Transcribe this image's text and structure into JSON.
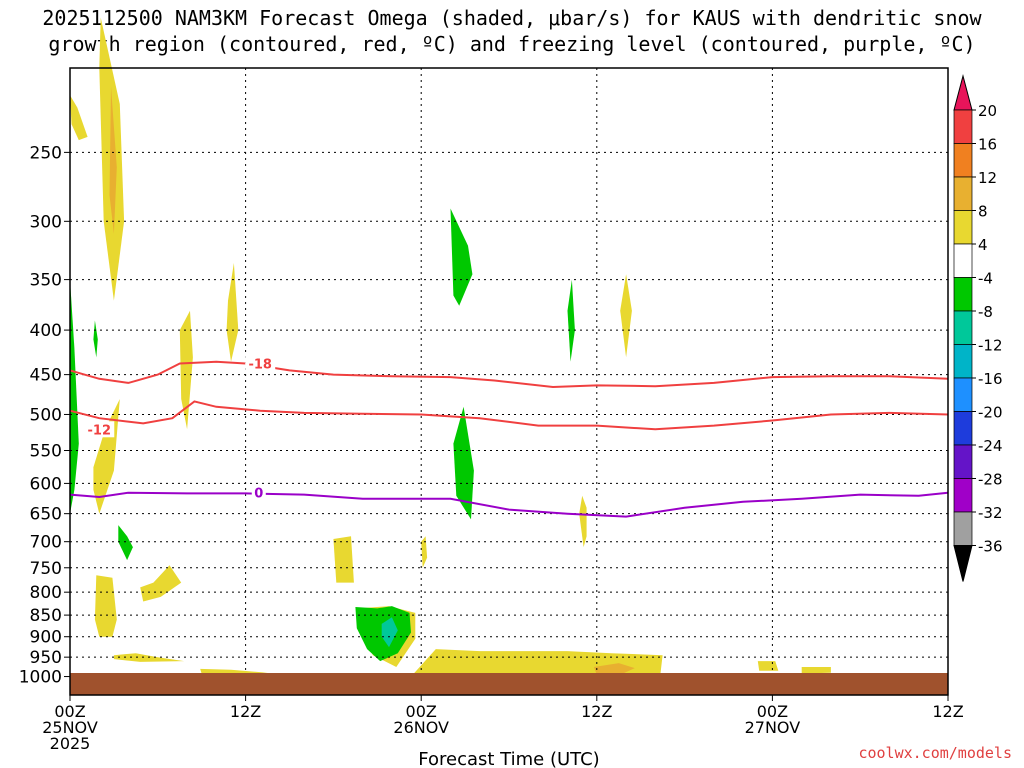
{
  "title": {
    "line1": "2025112500 NAM3KM Forecast Omega (shaded, μbar/s) for KAUS with dendritic snow",
    "line2": "growth region (contoured, red, ºC) and freezing level (contoured, purple, ºC)"
  },
  "footer": "coolwx.com/models",
  "chart_data": {
    "type": "time-height contour",
    "xlabel": "Forecast Time (UTC)",
    "x_range_hours": [
      0,
      60
    ],
    "y_range_hPa": [
      1050,
      200
    ],
    "x_ticks": [
      {
        "hour": 0,
        "lines": [
          "00Z",
          "25NOV",
          "2025"
        ]
      },
      {
        "hour": 12,
        "lines": [
          "12Z"
        ]
      },
      {
        "hour": 24,
        "lines": [
          "00Z",
          "26NOV"
        ]
      },
      {
        "hour": 36,
        "lines": [
          "12Z"
        ]
      },
      {
        "hour": 48,
        "lines": [
          "00Z",
          "27NOV"
        ]
      },
      {
        "hour": 60,
        "lines": [
          "12Z"
        ]
      }
    ],
    "y_ticks": [
      250,
      300,
      350,
      400,
      450,
      500,
      550,
      600,
      650,
      700,
      750,
      800,
      850,
      900,
      950,
      1000
    ],
    "colorbar": {
      "labels": [
        "20",
        "16",
        "12",
        "8",
        "4",
        "-4",
        "-8",
        "-12",
        "-16",
        "-20",
        "-24",
        "-28",
        "-32",
        "-36"
      ],
      "colors": [
        "#e8145a",
        "#f04040",
        "#f08020",
        "#e8b030",
        "#e8d830",
        "#ffffff",
        "#00c800",
        "#00c89a",
        "#00b4c8",
        "#1e90ff",
        "#1e3cdc",
        "#6414c8",
        "#a000c8",
        "#a0a0a0",
        "#000000"
      ]
    },
    "shading": [
      {
        "fill": "#e8d830",
        "pts": [
          [
            0.0,
            215
          ],
          [
            0.5,
            222
          ],
          [
            1.2,
            240
          ],
          [
            0.6,
            242
          ],
          [
            0.1,
            232
          ]
        ]
      },
      {
        "fill": "#e8d830",
        "pts": [
          [
            2.1,
            175
          ],
          [
            3.4,
            220
          ],
          [
            3.7,
            300
          ],
          [
            3.0,
            370
          ],
          [
            2.3,
            300
          ],
          [
            2.0,
            200
          ]
        ]
      },
      {
        "fill": "#e8b030",
        "pts": [
          [
            2.8,
            210
          ],
          [
            3.2,
            260
          ],
          [
            3.0,
            310
          ],
          [
            2.7,
            280
          ]
        ]
      },
      {
        "fill": "#00c800",
        "pts": [
          [
            0.0,
            350
          ],
          [
            0.3,
            420
          ],
          [
            0.6,
            540
          ],
          [
            0.3,
            610
          ],
          [
            0.0,
            650
          ]
        ]
      },
      {
        "fill": "#00c800",
        "pts": [
          [
            1.7,
            390
          ],
          [
            1.9,
            410
          ],
          [
            1.8,
            430
          ],
          [
            1.6,
            410
          ]
        ]
      },
      {
        "fill": "#e8d830",
        "pts": [
          [
            1.6,
            575
          ],
          [
            2.4,
            520
          ],
          [
            3.4,
            480
          ],
          [
            3.0,
            580
          ],
          [
            2.0,
            650
          ],
          [
            1.6,
            610
          ]
        ]
      },
      {
        "fill": "#e8d830",
        "pts": [
          [
            7.5,
            400
          ],
          [
            8.2,
            380
          ],
          [
            8.4,
            430
          ],
          [
            8.0,
            520
          ],
          [
            7.6,
            480
          ]
        ]
      },
      {
        "fill": "#e8d830",
        "pts": [
          [
            10.8,
            370
          ],
          [
            11.2,
            335
          ],
          [
            11.5,
            400
          ],
          [
            11.0,
            435
          ],
          [
            10.7,
            400
          ]
        ]
      },
      {
        "fill": "#00c800",
        "pts": [
          [
            3.3,
            670
          ],
          [
            3.9,
            690
          ],
          [
            4.3,
            710
          ],
          [
            3.9,
            735
          ],
          [
            3.3,
            700
          ]
        ]
      },
      {
        "fill": "#e8d830",
        "pts": [
          [
            4.8,
            790
          ],
          [
            5.7,
            780
          ],
          [
            6.8,
            745
          ],
          [
            7.6,
            780
          ],
          [
            6.2,
            810
          ],
          [
            5.0,
            820
          ]
        ]
      },
      {
        "fill": "#e8d830",
        "pts": [
          [
            1.8,
            765
          ],
          [
            2.9,
            770
          ],
          [
            3.2,
            860
          ],
          [
            2.9,
            900
          ],
          [
            2.0,
            900
          ],
          [
            1.7,
            860
          ]
        ]
      },
      {
        "fill": "#e8d830",
        "pts": [
          [
            3.0,
            945
          ],
          [
            4.5,
            940
          ],
          [
            6.0,
            950
          ],
          [
            7.8,
            960
          ],
          [
            4.8,
            962
          ],
          [
            3.0,
            955
          ]
        ]
      },
      {
        "fill": "#e8d830",
        "pts": [
          [
            8.9,
            980
          ],
          [
            11.0,
            982
          ],
          [
            13.5,
            990
          ],
          [
            11.0,
            994
          ],
          [
            9.0,
            993
          ]
        ]
      },
      {
        "fill": "#e8d830",
        "pts": [
          [
            19.7,
            835
          ],
          [
            21.8,
            830
          ],
          [
            23.6,
            845
          ],
          [
            23.6,
            905
          ],
          [
            22.3,
            975
          ],
          [
            20.7,
            945
          ],
          [
            19.7,
            875
          ]
        ]
      },
      {
        "fill": "#00c800",
        "pts": [
          [
            19.5,
            832
          ],
          [
            21.0,
            835
          ],
          [
            22.0,
            830
          ],
          [
            23.2,
            845
          ],
          [
            23.3,
            890
          ],
          [
            22.4,
            940
          ],
          [
            21.2,
            960
          ],
          [
            20.3,
            930
          ],
          [
            19.6,
            880
          ]
        ]
      },
      {
        "fill": "#00c89a",
        "pts": [
          [
            21.3,
            870
          ],
          [
            22.0,
            855
          ],
          [
            22.4,
            885
          ],
          [
            21.8,
            925
          ],
          [
            21.3,
            900
          ]
        ]
      },
      {
        "fill": "#e8d830",
        "pts": [
          [
            24.0,
            700
          ],
          [
            24.3,
            690
          ],
          [
            24.4,
            730
          ],
          [
            24.1,
            750
          ]
        ]
      },
      {
        "fill": "#e8d830",
        "pts": [
          [
            18.0,
            695
          ],
          [
            19.2,
            690
          ],
          [
            19.4,
            780
          ],
          [
            18.2,
            780
          ]
        ]
      },
      {
        "fill": "#e8d830",
        "pts": [
          [
            23.3,
            1000
          ],
          [
            25.0,
            930
          ],
          [
            28.0,
            935
          ],
          [
            31.0,
            935
          ],
          [
            34.0,
            935
          ],
          [
            37.0,
            940
          ],
          [
            40.5,
            945
          ],
          [
            40.3,
            1010
          ],
          [
            34.0,
            1010
          ],
          [
            28.0,
            1010
          ]
        ]
      },
      {
        "fill": "#e8b030",
        "pts": [
          [
            35.8,
            975
          ],
          [
            37.5,
            965
          ],
          [
            38.6,
            978
          ],
          [
            37.6,
            995
          ],
          [
            36.0,
            995
          ]
        ]
      },
      {
        "fill": "#00c800",
        "pts": [
          [
            26.0,
            290
          ],
          [
            27.2,
            320
          ],
          [
            27.5,
            345
          ],
          [
            26.6,
            375
          ],
          [
            26.2,
            365
          ]
        ]
      },
      {
        "fill": "#00c800",
        "pts": [
          [
            26.2,
            540
          ],
          [
            26.9,
            490
          ],
          [
            27.6,
            580
          ],
          [
            27.4,
            660
          ],
          [
            26.4,
            620
          ]
        ]
      },
      {
        "fill": "#00c800",
        "pts": [
          [
            34.0,
            380
          ],
          [
            34.3,
            350
          ],
          [
            34.5,
            400
          ],
          [
            34.2,
            435
          ]
        ]
      },
      {
        "fill": "#e8d830",
        "pts": [
          [
            37.6,
            380
          ],
          [
            38.0,
            345
          ],
          [
            38.4,
            380
          ],
          [
            38.0,
            430
          ]
        ]
      },
      {
        "fill": "#e8d830",
        "pts": [
          [
            35.0,
            620
          ],
          [
            35.3,
            640
          ],
          [
            35.3,
            690
          ],
          [
            35.1,
            710
          ],
          [
            34.8,
            650
          ]
        ]
      },
      {
        "fill": "#e8d830",
        "pts": [
          [
            47.0,
            960
          ],
          [
            48.2,
            960
          ],
          [
            48.4,
            985
          ],
          [
            47.1,
            985
          ]
        ]
      },
      {
        "fill": "#e8d830",
        "pts": [
          [
            50.0,
            975
          ],
          [
            52.0,
            975
          ],
          [
            52.0,
            990
          ],
          [
            50.0,
            992
          ]
        ]
      }
    ],
    "contours": [
      {
        "label": "-18",
        "color": "#f04040",
        "label_hour": 13.0,
        "label_p": 437,
        "pts": [
          [
            0,
            445
          ],
          [
            2,
            455
          ],
          [
            4,
            460
          ],
          [
            6,
            450
          ],
          [
            7.5,
            437
          ],
          [
            10,
            435
          ],
          [
            12,
            437
          ],
          [
            15,
            445
          ],
          [
            18,
            450
          ],
          [
            22,
            452
          ],
          [
            26,
            453
          ],
          [
            29,
            457
          ],
          [
            33,
            465
          ],
          [
            36,
            463
          ],
          [
            40,
            464
          ],
          [
            44,
            460
          ],
          [
            48,
            453
          ],
          [
            52,
            452
          ],
          [
            56,
            452
          ],
          [
            60,
            455
          ]
        ]
      },
      {
        "label": "-12",
        "color": "#f04040",
        "label_hour": 2.0,
        "label_p": 520,
        "pts": [
          [
            0,
            495
          ],
          [
            2,
            505
          ],
          [
            5,
            512
          ],
          [
            7,
            505
          ],
          [
            8.5,
            483
          ],
          [
            10,
            490
          ],
          [
            13,
            495
          ],
          [
            16,
            498
          ],
          [
            20,
            499
          ],
          [
            24,
            500
          ],
          [
            28,
            505
          ],
          [
            32,
            515
          ],
          [
            36,
            515
          ],
          [
            40,
            520
          ],
          [
            44,
            515
          ],
          [
            48,
            508
          ],
          [
            52,
            500
          ],
          [
            56,
            498
          ],
          [
            60,
            500
          ]
        ]
      },
      {
        "label": "0",
        "color": "#9a00c8",
        "label_hour": 12.9,
        "label_p": 615,
        "pts": [
          [
            0,
            618
          ],
          [
            2,
            622
          ],
          [
            4,
            615
          ],
          [
            8,
            616
          ],
          [
            12,
            616
          ],
          [
            16,
            618
          ],
          [
            20,
            625
          ],
          [
            24,
            625
          ],
          [
            26,
            625
          ],
          [
            30,
            643
          ],
          [
            34,
            650
          ],
          [
            38,
            655
          ],
          [
            42,
            640
          ],
          [
            46,
            630
          ],
          [
            50,
            625
          ],
          [
            54,
            618
          ],
          [
            58,
            620
          ],
          [
            60,
            615
          ]
        ]
      }
    ]
  }
}
